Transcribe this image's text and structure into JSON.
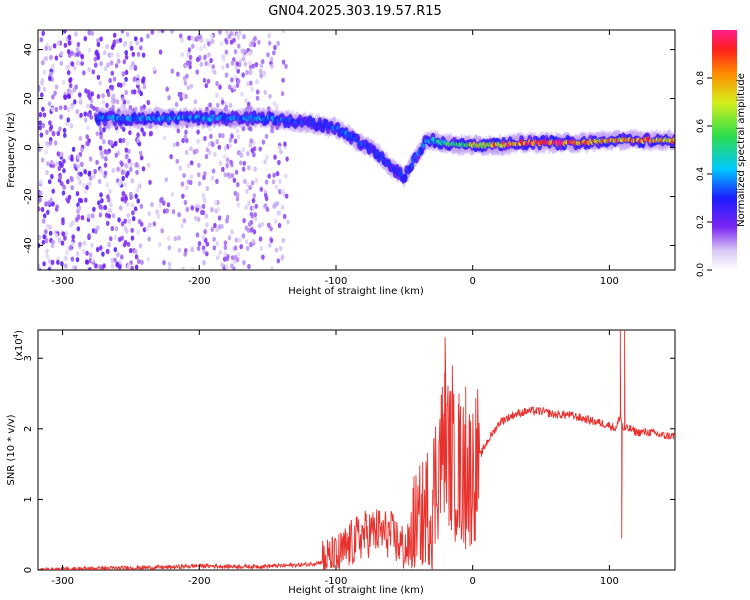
{
  "title": "GN04.2025.303.19.57.R15",
  "chart_data": [
    {
      "type": "heatmap",
      "xlabel": "Height of straight line (km)",
      "ylabel": "Frequency (Hz)",
      "xlim": [
        -318,
        148
      ],
      "ylim": [
        -50,
        48
      ],
      "xticks": [
        -300,
        -200,
        -100,
        0,
        100
      ],
      "yticks": [
        -40,
        -20,
        0,
        20,
        40
      ],
      "colorbar": {
        "label": "Normalized spectral amplitude",
        "range": [
          0,
          1
        ],
        "ticks": [
          "0.0",
          "0.2",
          "0.4",
          "0.6",
          "0.8"
        ]
      },
      "ridge": {
        "x": [
          -275,
          -250,
          -200,
          -150,
          -120,
          -100,
          -85,
          -70,
          -60,
          -50,
          -42,
          -35,
          -30,
          -20,
          -10,
          0,
          20,
          40,
          60,
          80,
          100,
          120,
          148
        ],
        "frequency": [
          12,
          12,
          12,
          12,
          10,
          8,
          3,
          -2,
          -8,
          -12,
          -4,
          2,
          3,
          2,
          1,
          1,
          1,
          2,
          2,
          2,
          3,
          3,
          3
        ],
        "amplitude": [
          0.35,
          0.4,
          0.4,
          0.4,
          0.3,
          0.35,
          0.35,
          0.3,
          0.3,
          0.3,
          0.35,
          0.4,
          0.45,
          0.55,
          0.6,
          0.7,
          0.85,
          0.95,
          0.95,
          0.9,
          0.85,
          0.9,
          0.8
        ]
      }
    },
    {
      "type": "line",
      "xlabel": "Height of straight line (km)",
      "ylabel": "SNR (10 * v/v)",
      "y_scale_label": "(x10",
      "y_scale_exp": "4",
      "y_scale_close": ")",
      "xlim": [
        -318,
        148
      ],
      "ylim": [
        0,
        3.4
      ],
      "xticks": [
        -300,
        -200,
        -100,
        0,
        100
      ],
      "yticks": [
        0,
        1,
        2,
        3
      ],
      "series": [
        {
          "name": "SNR",
          "color": "#e8302c",
          "x": [
            -318,
            -280,
            -250,
            -220,
            -200,
            -180,
            -160,
            -140,
            -120,
            -100,
            -90,
            -80,
            -70,
            -60,
            -50,
            -40,
            -30,
            -25,
            -20,
            -15,
            -10,
            -5,
            0,
            10,
            20,
            30,
            40,
            50,
            60,
            70,
            80,
            90,
            100,
            105,
            108,
            110,
            115,
            120,
            130,
            140,
            148
          ],
          "y": [
            0.0,
            0.02,
            0.03,
            0.04,
            0.06,
            0.05,
            0.05,
            0.06,
            0.08,
            0.15,
            0.35,
            0.5,
            0.55,
            0.5,
            0.3,
            0.35,
            0.9,
            1.5,
            1.9,
            1.5,
            1.4,
            1.3,
            1.4,
            1.8,
            2.1,
            2.2,
            2.25,
            2.25,
            2.2,
            2.2,
            2.15,
            2.1,
            2.05,
            2.0,
            2.2,
            2.0,
            2.0,
            1.95,
            1.95,
            1.9,
            1.9
          ],
          "spikes": [
            [
              -20,
              3.3
            ],
            [
              -15,
              2.9
            ],
            [
              -10,
              2.5
            ],
            [
              -5,
              2.6
            ],
            [
              108,
              3.4
            ],
            [
              109,
              0.45
            ],
            [
              111,
              3.4
            ]
          ]
        }
      ]
    }
  ]
}
